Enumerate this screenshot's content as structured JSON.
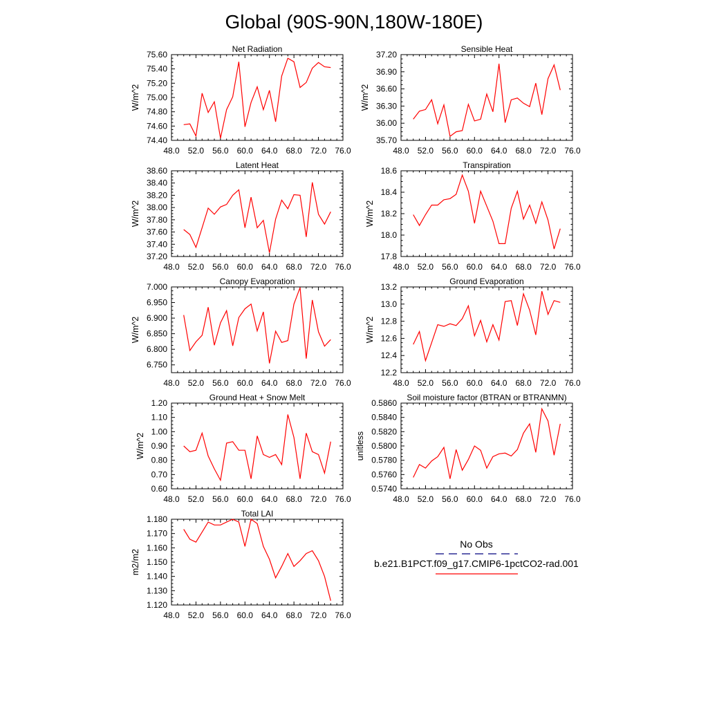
{
  "title": "Global (90S-90N,180W-180E)",
  "colors": {
    "model": "#ff0000",
    "obs": "#00007f"
  },
  "legend": {
    "obs_label": "No Obs",
    "model_label": "b.e21.B1PCT.f09_g17.CMIP6-1pctCO2-rad.001"
  },
  "chart_data": [
    {
      "type": "line",
      "title": "Net Radiation",
      "ylabel": "W/m^2",
      "xlim": [
        48,
        76
      ],
      "ylim": [
        74.4,
        75.6
      ],
      "xticks": [
        48,
        52,
        56,
        60,
        64,
        68,
        72,
        76
      ],
      "xtick_labels": [
        "48.0",
        "52.0",
        "56.0",
        "60.0",
        "64.0",
        "68.0",
        "72.0",
        "76.0"
      ],
      "yticks": [
        74.4,
        74.6,
        74.8,
        75.0,
        75.2,
        75.4,
        75.6
      ],
      "ytick_labels": [
        "74.40",
        "74.60",
        "74.80",
        "75.00",
        "75.20",
        "75.40",
        "75.60"
      ],
      "x": [
        50,
        51,
        52,
        53,
        54,
        55,
        56,
        57,
        58,
        59,
        60,
        61,
        62,
        63,
        64,
        65,
        66,
        67,
        68,
        69,
        70,
        71,
        72,
        73,
        74
      ],
      "y": [
        74.62,
        74.63,
        74.46,
        75.06,
        74.79,
        74.94,
        74.43,
        74.83,
        75.01,
        75.5,
        74.59,
        74.93,
        75.15,
        74.83,
        75.1,
        74.66,
        75.3,
        75.55,
        75.5,
        75.14,
        75.21,
        75.41,
        75.49,
        75.43,
        75.42
      ]
    },
    {
      "type": "line",
      "title": "Sensible Heat",
      "ylabel": "W/m^2",
      "xlim": [
        48,
        76
      ],
      "ylim": [
        35.7,
        37.2
      ],
      "xticks": [
        48,
        52,
        56,
        60,
        64,
        68,
        72,
        76
      ],
      "xtick_labels": [
        "48.0",
        "52.0",
        "56.0",
        "60.0",
        "64.0",
        "68.0",
        "72.0",
        "76.0"
      ],
      "yticks": [
        35.7,
        36.0,
        36.3,
        36.6,
        36.9,
        37.2
      ],
      "ytick_labels": [
        "35.70",
        "36.00",
        "36.30",
        "36.60",
        "36.90",
        "37.20"
      ],
      "x": [
        50,
        51,
        52,
        53,
        54,
        55,
        56,
        57,
        58,
        59,
        60,
        61,
        62,
        63,
        64,
        65,
        66,
        67,
        68,
        69,
        70,
        71,
        72,
        73,
        74
      ],
      "y": [
        36.07,
        36.21,
        36.24,
        36.41,
        35.99,
        36.32,
        35.77,
        35.85,
        35.87,
        36.33,
        36.04,
        36.07,
        36.51,
        36.2,
        37.04,
        36.01,
        36.41,
        36.44,
        36.35,
        36.29,
        36.7,
        36.15,
        36.78,
        37.02,
        36.58
      ]
    },
    {
      "type": "line",
      "title": "Latent Heat",
      "ylabel": "W/m^2",
      "xlim": [
        48,
        76
      ],
      "ylim": [
        37.2,
        38.6
      ],
      "xticks": [
        48,
        52,
        56,
        60,
        64,
        68,
        72,
        76
      ],
      "xtick_labels": [
        "48.0",
        "52.0",
        "56.0",
        "60.0",
        "64.0",
        "68.0",
        "72.0",
        "76.0"
      ],
      "yticks": [
        37.2,
        37.4,
        37.6,
        37.8,
        38.0,
        38.2,
        38.4,
        38.6
      ],
      "ytick_labels": [
        "37.20",
        "37.40",
        "37.60",
        "37.80",
        "38.00",
        "38.20",
        "38.40",
        "38.60"
      ],
      "x": [
        50,
        51,
        52,
        53,
        54,
        55,
        56,
        57,
        58,
        59,
        60,
        61,
        62,
        63,
        64,
        65,
        66,
        67,
        68,
        69,
        70,
        71,
        72,
        73,
        74
      ],
      "y": [
        37.64,
        37.56,
        37.35,
        37.67,
        37.99,
        37.89,
        38.01,
        38.05,
        38.2,
        38.29,
        37.67,
        38.17,
        37.67,
        37.79,
        37.26,
        37.81,
        38.12,
        37.98,
        38.21,
        38.2,
        37.52,
        38.41,
        37.89,
        37.73,
        37.93
      ]
    },
    {
      "type": "line",
      "title": "Transpiration",
      "ylabel": "W/m^2",
      "xlim": [
        48,
        76
      ],
      "ylim": [
        17.8,
        18.6
      ],
      "xticks": [
        48,
        52,
        56,
        60,
        64,
        68,
        72,
        76
      ],
      "xtick_labels": [
        "48.0",
        "52.0",
        "56.0",
        "60.0",
        "64.0",
        "68.0",
        "72.0",
        "76.0"
      ],
      "yticks": [
        17.8,
        18.0,
        18.2,
        18.4,
        18.6
      ],
      "ytick_labels": [
        "17.8",
        "18.0",
        "18.2",
        "18.4",
        "18.6"
      ],
      "x": [
        50,
        51,
        52,
        53,
        54,
        55,
        56,
        57,
        58,
        59,
        60,
        61,
        62,
        63,
        64,
        65,
        66,
        67,
        68,
        69,
        70,
        71,
        72,
        73,
        74
      ],
      "y": [
        18.19,
        18.09,
        18.19,
        18.28,
        18.28,
        18.33,
        18.34,
        18.38,
        18.56,
        18.41,
        18.11,
        18.41,
        18.27,
        18.13,
        17.92,
        17.92,
        18.25,
        18.41,
        18.15,
        18.28,
        18.11,
        18.31,
        18.14,
        17.87,
        18.06
      ]
    },
    {
      "type": "line",
      "title": "Canopy Evaporation",
      "ylabel": "W/m^2",
      "xlim": [
        48,
        76
      ],
      "ylim": [
        6.725,
        7.0
      ],
      "xticks": [
        48,
        52,
        56,
        60,
        64,
        68,
        72,
        76
      ],
      "xtick_labels": [
        "48.0",
        "52.0",
        "56.0",
        "60.0",
        "64.0",
        "68.0",
        "72.0",
        "76.0"
      ],
      "yticks": [
        6.75,
        6.8,
        6.85,
        6.9,
        6.95,
        7.0
      ],
      "ytick_labels": [
        "6.750",
        "6.800",
        "6.850",
        "6.900",
        "6.950",
        "7.000"
      ],
      "x": [
        50,
        51,
        52,
        53,
        54,
        55,
        56,
        57,
        58,
        59,
        60,
        61,
        62,
        63,
        64,
        65,
        66,
        67,
        68,
        69,
        70,
        71,
        72,
        73,
        74
      ],
      "y": [
        6.91,
        6.796,
        6.824,
        6.845,
        6.935,
        6.813,
        6.885,
        6.924,
        6.811,
        6.902,
        6.93,
        6.945,
        6.859,
        6.92,
        6.755,
        6.858,
        6.822,
        6.828,
        6.945,
        6.998,
        6.77,
        6.958,
        6.856,
        6.81,
        6.831
      ]
    },
    {
      "type": "line",
      "title": "Ground Evaporation",
      "ylabel": "W/m^2",
      "xlim": [
        48,
        76
      ],
      "ylim": [
        12.2,
        13.2
      ],
      "xticks": [
        48,
        52,
        56,
        60,
        64,
        68,
        72,
        76
      ],
      "xtick_labels": [
        "48.0",
        "52.0",
        "56.0",
        "60.0",
        "64.0",
        "68.0",
        "72.0",
        "76.0"
      ],
      "yticks": [
        12.2,
        12.4,
        12.6,
        12.8,
        13.0,
        13.2
      ],
      "ytick_labels": [
        "12.2",
        "12.4",
        "12.6",
        "12.8",
        "13.0",
        "13.2"
      ],
      "x": [
        50,
        51,
        52,
        53,
        54,
        55,
        56,
        57,
        58,
        59,
        60,
        61,
        62,
        63,
        64,
        65,
        66,
        67,
        68,
        69,
        70,
        71,
        72,
        73,
        74
      ],
      "y": [
        12.53,
        12.68,
        12.34,
        12.55,
        12.76,
        12.74,
        12.77,
        12.75,
        12.83,
        12.98,
        12.63,
        12.81,
        12.56,
        12.76,
        12.58,
        13.03,
        13.04,
        12.75,
        13.12,
        12.93,
        12.64,
        13.15,
        12.88,
        13.04,
        13.02
      ]
    },
    {
      "type": "line",
      "title": "Ground Heat + Snow Melt",
      "ylabel": "W/m^2",
      "xlim": [
        48,
        76
      ],
      "ylim": [
        0.6,
        1.2
      ],
      "xticks": [
        48,
        52,
        56,
        60,
        64,
        68,
        72,
        76
      ],
      "xtick_labels": [
        "48.0",
        "52.0",
        "56.0",
        "60.0",
        "64.0",
        "68.0",
        "72.0",
        "76.0"
      ],
      "yticks": [
        0.6,
        0.7,
        0.8,
        0.9,
        1.0,
        1.1,
        1.2
      ],
      "ytick_labels": [
        "0.60",
        "0.70",
        "0.80",
        "0.90",
        "1.00",
        "1.10",
        "1.20"
      ],
      "x": [
        50,
        51,
        52,
        53,
        54,
        55,
        56,
        57,
        58,
        59,
        60,
        61,
        62,
        63,
        64,
        65,
        66,
        67,
        68,
        69,
        70,
        71,
        72,
        73,
        74
      ],
      "y": [
        0.9,
        0.86,
        0.87,
        0.99,
        0.83,
        0.74,
        0.66,
        0.92,
        0.93,
        0.87,
        0.87,
        0.67,
        0.97,
        0.84,
        0.82,
        0.84,
        0.77,
        1.12,
        0.96,
        0.67,
        0.99,
        0.86,
        0.84,
        0.71,
        0.93
      ]
    },
    {
      "type": "line",
      "title": "Soil moisture factor (BTRAN or BTRANMN)",
      "ylabel": "unitless",
      "xlim": [
        48,
        76
      ],
      "ylim": [
        0.574,
        0.586
      ],
      "xticks": [
        48,
        52,
        56,
        60,
        64,
        68,
        72,
        76
      ],
      "xtick_labels": [
        "48.0",
        "52.0",
        "56.0",
        "60.0",
        "64.0",
        "68.0",
        "72.0",
        "76.0"
      ],
      "yticks": [
        0.574,
        0.576,
        0.578,
        0.58,
        0.582,
        0.584,
        0.586
      ],
      "ytick_labels": [
        "0.5740",
        "0.5760",
        "0.5780",
        "0.5800",
        "0.5820",
        "0.5840",
        "0.5860"
      ],
      "x": [
        50,
        51,
        52,
        53,
        54,
        55,
        56,
        57,
        58,
        59,
        60,
        61,
        62,
        63,
        64,
        65,
        66,
        67,
        68,
        69,
        70,
        71,
        72,
        73,
        74
      ],
      "y": [
        0.5756,
        0.5774,
        0.5769,
        0.5779,
        0.5785,
        0.5798,
        0.5754,
        0.5795,
        0.5766,
        0.5781,
        0.58,
        0.5794,
        0.5769,
        0.5785,
        0.5789,
        0.579,
        0.5786,
        0.5795,
        0.5818,
        0.5831,
        0.5791,
        0.5852,
        0.5835,
        0.5787,
        0.5831
      ]
    },
    {
      "type": "line",
      "title": "Total LAI",
      "ylabel": "m2/m2",
      "xlim": [
        48,
        76
      ],
      "ylim": [
        1.12,
        1.18
      ],
      "xticks": [
        48,
        52,
        56,
        60,
        64,
        68,
        72,
        76
      ],
      "xtick_labels": [
        "48.0",
        "52.0",
        "56.0",
        "60.0",
        "64.0",
        "68.0",
        "72.0",
        "76.0"
      ],
      "yticks": [
        1.12,
        1.13,
        1.14,
        1.15,
        1.16,
        1.17,
        1.18
      ],
      "ytick_labels": [
        "1.120",
        "1.130",
        "1.140",
        "1.150",
        "1.160",
        "1.170",
        "1.180"
      ],
      "x": [
        50,
        51,
        52,
        53,
        54,
        55,
        56,
        57,
        58,
        59,
        60,
        61,
        62,
        63,
        64,
        65,
        66,
        67,
        68,
        69,
        70,
        71,
        72,
        73,
        74
      ],
      "y": [
        1.173,
        1.166,
        1.164,
        1.171,
        1.178,
        1.176,
        1.176,
        1.178,
        1.18,
        1.178,
        1.161,
        1.18,
        1.177,
        1.161,
        1.152,
        1.139,
        1.147,
        1.156,
        1.147,
        1.151,
        1.156,
        1.158,
        1.151,
        1.14,
        1.123
      ]
    }
  ]
}
